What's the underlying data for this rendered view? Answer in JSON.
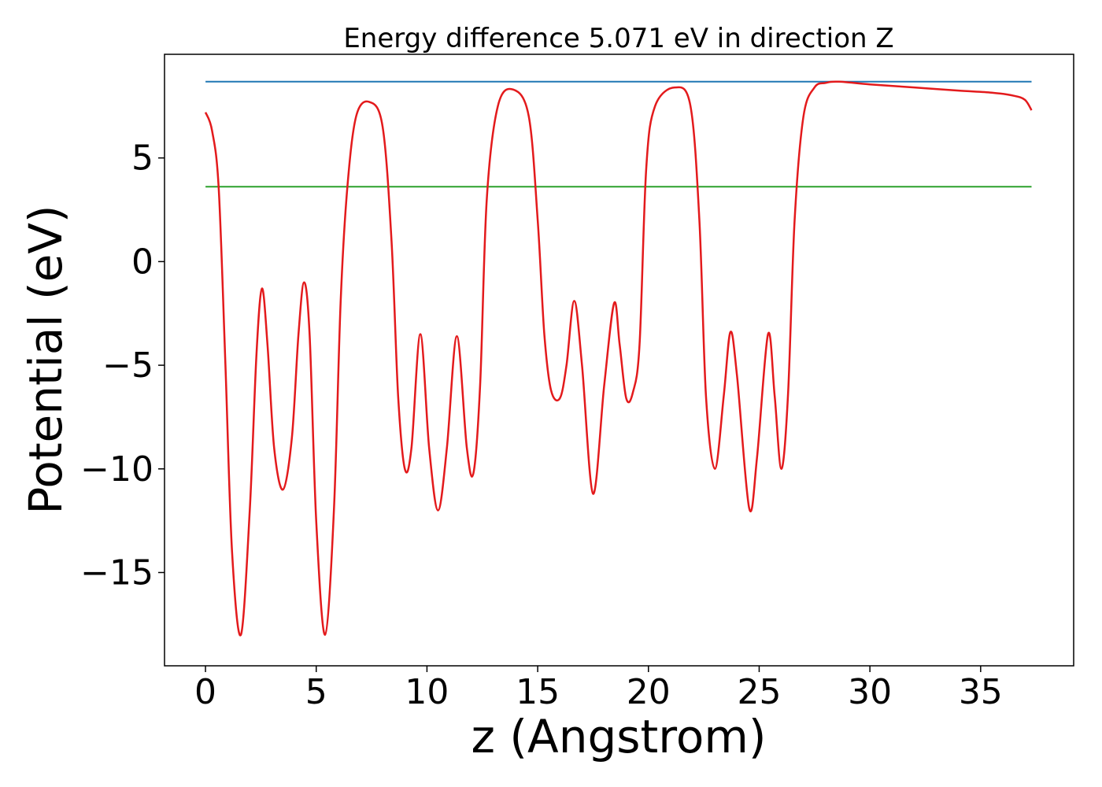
{
  "chart_data": {
    "type": "line",
    "title": "Energy difference 5.071 eV in direction Z",
    "xlabel": "z (Angstrom)",
    "ylabel": "Potential (eV)",
    "xlim": [
      -1.85,
      39.2
    ],
    "ylim": [
      -19.5,
      10.0
    ],
    "xticks": [
      0,
      5,
      10,
      15,
      20,
      25,
      30,
      35
    ],
    "yticks": [
      -15,
      -10,
      -5,
      0,
      5
    ],
    "ytick_labels": [
      "−15",
      "−10",
      "−5",
      "0",
      "5"
    ],
    "grid": false,
    "colors": {
      "potential": "#e31a1c",
      "vacuum_level": "#1f77b4",
      "fermi_level": "#2ca02c"
    },
    "series": [
      {
        "role": "potential",
        "x": [
          0,
          0.3,
          0.6,
          0.9,
          1.2,
          1.6,
          2.0,
          2.3,
          2.55,
          2.8,
          3.1,
          3.5,
          3.9,
          4.2,
          4.45,
          4.7,
          5.0,
          5.4,
          5.8,
          6.1,
          6.4,
          6.8,
          7.4,
          8.0,
          8.4,
          8.7,
          9.0,
          9.3,
          9.7,
          10.1,
          10.5,
          10.9,
          11.35,
          11.8,
          12.1,
          12.4,
          12.7,
          13.2,
          13.9,
          14.6,
          15.0,
          15.3,
          15.6,
          16.0,
          16.3,
          16.65,
          17.0,
          17.5,
          18.0,
          18.45,
          18.7,
          19.0,
          19.3,
          19.6,
          19.9,
          20.3,
          21.2,
          21.9,
          22.3,
          22.6,
          23.0,
          23.4,
          23.7,
          24.0,
          24.55,
          24.9,
          25.4,
          25.7,
          26.0,
          26.3,
          26.6,
          27.0,
          27.5,
          28.0,
          28.6,
          30.0,
          32.0,
          34.0,
          35.5,
          36.5,
          37.0,
          37.3
        ],
        "y": [
          7.2,
          6.3,
          3.5,
          -5.0,
          -14.0,
          -18.0,
          -12.0,
          -4.5,
          -1.3,
          -4.0,
          -9.0,
          -11.0,
          -8.5,
          -3.5,
          -1.0,
          -3.5,
          -12.5,
          -18.0,
          -12.0,
          -2.0,
          3.5,
          7.0,
          7.7,
          6.5,
          1.0,
          -6.5,
          -10.0,
          -9.0,
          -3.5,
          -9.0,
          -12.0,
          -9.0,
          -3.6,
          -9.0,
          -10.2,
          -6.0,
          3.0,
          7.5,
          8.3,
          7.0,
          2.0,
          -3.5,
          -6.2,
          -6.6,
          -5.0,
          -1.9,
          -5.0,
          -11.2,
          -6.0,
          -2.0,
          -4.0,
          -6.6,
          -6.3,
          -4.0,
          4.5,
          7.5,
          8.4,
          7.5,
          2.0,
          -6.5,
          -10.0,
          -6.5,
          -3.4,
          -5.5,
          -11.9,
          -9.5,
          -3.5,
          -6.5,
          -10.0,
          -6.5,
          2.0,
          7.0,
          8.4,
          8.62,
          8.68,
          8.55,
          8.4,
          8.25,
          8.15,
          8.0,
          7.8,
          7.3
        ]
      },
      {
        "role": "vacuum_level",
        "x": [
          0,
          37.3
        ],
        "y": [
          8.68,
          8.68
        ]
      },
      {
        "role": "fermi_level",
        "x": [
          0,
          37.3
        ],
        "y": [
          3.61,
          3.61
        ]
      }
    ]
  }
}
